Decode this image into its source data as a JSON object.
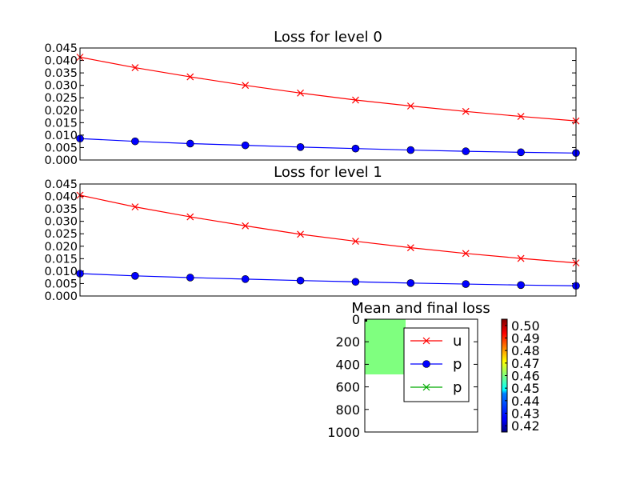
{
  "figure": {
    "background": "#ffffff"
  },
  "chart_data": [
    {
      "type": "line",
      "title": "Loss for level 0",
      "xlabel": "",
      "ylabel": "",
      "x": [
        0,
        1,
        2,
        3,
        4,
        5,
        6,
        7,
        8,
        9
      ],
      "xlim": [
        0,
        9
      ],
      "ylim": [
        0.0,
        0.045
      ],
      "yticks": [
        "0.000",
        "0.005",
        "0.010",
        "0.015",
        "0.020",
        "0.025",
        "0.030",
        "0.035",
        "0.040",
        "0.045"
      ],
      "grid": false,
      "series": [
        {
          "marker": "x",
          "color": "#ff0000",
          "values": [
            0.0413,
            0.0371,
            0.0334,
            0.03,
            0.0269,
            0.0241,
            0.0217,
            0.0195,
            0.0175,
            0.0157
          ]
        },
        {
          "marker": "o",
          "color": "#0000ff",
          "values": [
            0.0086,
            0.0075,
            0.0066,
            0.0059,
            0.0052,
            0.0046,
            0.004,
            0.0035,
            0.0031,
            0.0028
          ]
        }
      ]
    },
    {
      "type": "line",
      "title": "Loss for level 1",
      "xlabel": "",
      "ylabel": "",
      "x": [
        0,
        1,
        2,
        3,
        4,
        5,
        6,
        7,
        8,
        9
      ],
      "xlim": [
        0,
        9
      ],
      "ylim": [
        0.0,
        0.045
      ],
      "yticks": [
        "0.000",
        "0.005",
        "0.010",
        "0.015",
        "0.020",
        "0.025",
        "0.030",
        "0.035",
        "0.040",
        "0.045"
      ],
      "grid": false,
      "series": [
        {
          "marker": "x",
          "color": "#ff0000",
          "values": [
            0.0405,
            0.0358,
            0.0318,
            0.0282,
            0.0248,
            0.022,
            0.0194,
            0.0171,
            0.0151,
            0.0133
          ]
        },
        {
          "marker": "o",
          "color": "#0000ff",
          "values": [
            0.009,
            0.0081,
            0.0074,
            0.0068,
            0.0062,
            0.0057,
            0.0052,
            0.0048,
            0.0044,
            0.0041
          ]
        }
      ]
    },
    {
      "type": "heatmap",
      "title": "Mean and final loss",
      "ylim": [
        1000,
        0
      ],
      "yticks": [
        "0",
        "200",
        "400",
        "600",
        "800",
        "1000"
      ],
      "cells": [
        {
          "x_from": 0,
          "x_to": 1,
          "y_from": 0,
          "y_to": 500,
          "value": 0.46,
          "color": "#7fff7f"
        }
      ],
      "legend": {
        "placement": "center-right",
        "entries": [
          {
            "label": "u",
            "marker": "x",
            "color": "#ff0000"
          },
          {
            "label": "p",
            "marker": "o",
            "color": "#0000ff"
          },
          {
            "label": "p",
            "marker": "x",
            "color": "#00aa00"
          }
        ]
      },
      "colorbar": {
        "cmap": "jet",
        "range": [
          0.415,
          0.505
        ],
        "ticks": [
          "0.42",
          "0.43",
          "0.44",
          "0.45",
          "0.46",
          "0.47",
          "0.48",
          "0.49",
          "0.50"
        ]
      }
    }
  ]
}
